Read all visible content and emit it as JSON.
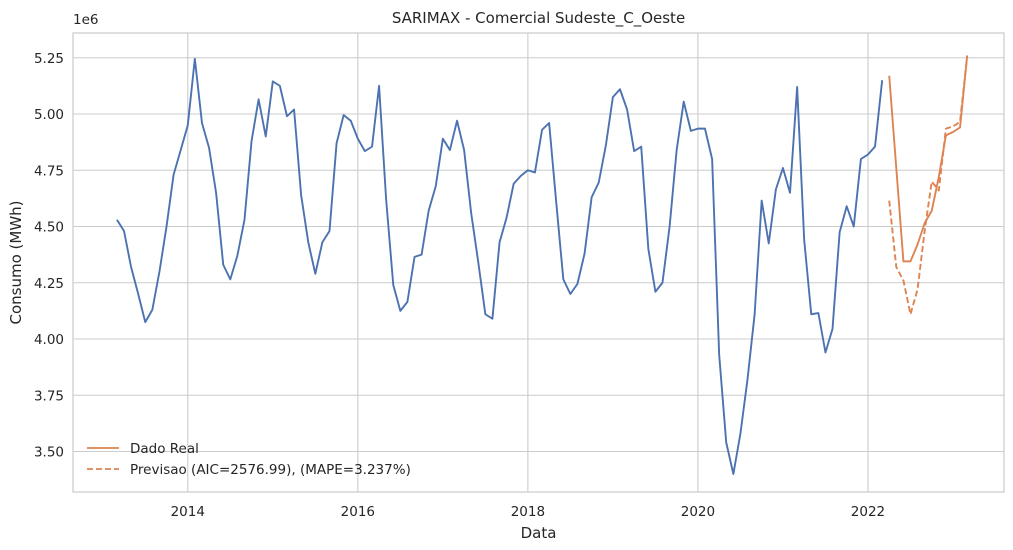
{
  "chart_data": {
    "type": "line",
    "title": "SARIMAX - Comercial Sudeste_C_Oeste",
    "xlabel": "Data",
    "ylabel": "Consumo (MWh)",
    "y_offset_text": "1e6",
    "xlim": [
      2012.65,
      2023.6
    ],
    "ylim": [
      3.32,
      5.36
    ],
    "x_ticks": [
      2014,
      2016,
      2018,
      2020,
      2022
    ],
    "x_tick_labels": [
      "2014",
      "2016",
      "2018",
      "2020",
      "2022"
    ],
    "y_ticks": [
      3.5,
      3.75,
      4.0,
      4.25,
      4.5,
      4.75,
      5.0,
      5.25
    ],
    "y_tick_labels": [
      "3.50",
      "3.75",
      "4.00",
      "4.25",
      "4.50",
      "4.75",
      "5.00",
      "5.25"
    ],
    "grid": true,
    "legend_position": "lower-left",
    "colors": {
      "history": "#4c72b0",
      "real": "#dd8452",
      "forecast": "#dd8452"
    },
    "series": [
      {
        "key": "history",
        "style": "solid",
        "x": [
          2013.167,
          2013.25,
          2013.333,
          2013.417,
          2013.5,
          2013.583,
          2013.667,
          2013.75,
          2013.833,
          2013.917,
          2014.0,
          2014.083,
          2014.167,
          2014.25,
          2014.333,
          2014.417,
          2014.5,
          2014.583,
          2014.667,
          2014.75,
          2014.833,
          2014.917,
          2015.0,
          2015.083,
          2015.167,
          2015.25,
          2015.333,
          2015.417,
          2015.5,
          2015.583,
          2015.667,
          2015.75,
          2015.833,
          2015.917,
          2016.0,
          2016.083,
          2016.167,
          2016.25,
          2016.333,
          2016.417,
          2016.5,
          2016.583,
          2016.667,
          2016.75,
          2016.833,
          2016.917,
          2017.0,
          2017.083,
          2017.167,
          2017.25,
          2017.333,
          2017.417,
          2017.5,
          2017.583,
          2017.667,
          2017.75,
          2017.833,
          2017.917,
          2018.0,
          2018.083,
          2018.167,
          2018.25,
          2018.333,
          2018.417,
          2018.5,
          2018.583,
          2018.667,
          2018.75,
          2018.833,
          2018.917,
          2019.0,
          2019.083,
          2019.167,
          2019.25,
          2019.333,
          2019.417,
          2019.5,
          2019.583,
          2019.667,
          2019.75,
          2019.833,
          2019.917,
          2020.0,
          2020.083,
          2020.167,
          2020.25,
          2020.333,
          2020.417,
          2020.5,
          2020.583,
          2020.667,
          2020.75,
          2020.833,
          2020.917,
          2021.0,
          2021.083,
          2021.167,
          2021.25,
          2021.333,
          2021.417,
          2021.5,
          2021.583,
          2021.667,
          2021.75,
          2021.833,
          2021.917,
          2022.0,
          2022.083,
          2022.167
        ],
        "values": [
          4.53,
          4.48,
          4.32,
          4.2,
          4.075,
          4.13,
          4.3,
          4.5,
          4.73,
          4.84,
          4.95,
          5.245,
          4.96,
          4.85,
          4.65,
          4.33,
          4.265,
          4.37,
          4.53,
          4.88,
          5.065,
          4.9,
          5.145,
          5.125,
          4.99,
          5.02,
          4.64,
          4.43,
          4.29,
          4.43,
          4.48,
          4.87,
          4.995,
          4.97,
          4.89,
          4.835,
          4.855,
          5.125,
          4.62,
          4.24,
          4.125,
          4.165,
          4.365,
          4.375,
          4.57,
          4.68,
          4.89,
          4.84,
          4.97,
          4.84,
          4.56,
          4.34,
          4.11,
          4.09,
          4.43,
          4.54,
          4.69,
          4.725,
          4.75,
          4.74,
          4.93,
          4.96,
          4.61,
          4.265,
          4.2,
          4.245,
          4.38,
          4.63,
          4.695,
          4.86,
          5.075,
          5.11,
          5.02,
          4.835,
          4.855,
          4.4,
          4.21,
          4.25,
          4.5,
          4.84,
          5.055,
          4.925,
          4.935,
          4.935,
          4.8,
          3.93,
          3.54,
          3.4,
          3.58,
          3.82,
          4.11,
          4.615,
          4.425,
          4.665,
          4.76,
          4.65,
          5.12,
          4.44,
          4.11,
          4.115,
          3.94,
          4.045,
          4.475,
          4.59,
          4.5,
          4.8,
          4.82,
          4.855,
          5.15
        ]
      },
      {
        "key": "real",
        "name": "Dado Real",
        "style": "solid",
        "x": [
          2022.25,
          2022.333,
          2022.417,
          2022.5,
          2022.583,
          2022.667,
          2022.75,
          2022.833,
          2022.917,
          2023.0,
          2023.083,
          2023.167
        ],
        "values": [
          5.17,
          4.76,
          4.345,
          4.345,
          4.42,
          4.515,
          4.57,
          4.72,
          4.905,
          4.92,
          4.94,
          5.26
        ]
      },
      {
        "key": "forecast",
        "name": "Previsao (AIC=2576.99), (MAPE=3.237%)",
        "style": "dashed",
        "x": [
          2022.25,
          2022.333,
          2022.417,
          2022.5,
          2022.583,
          2022.667,
          2022.75,
          2022.833,
          2022.917,
          2023.0,
          2023.083,
          2023.167
        ],
        "values": [
          4.615,
          4.32,
          4.26,
          4.11,
          4.22,
          4.48,
          4.7,
          4.66,
          4.935,
          4.945,
          4.965,
          5.26
        ]
      }
    ]
  }
}
